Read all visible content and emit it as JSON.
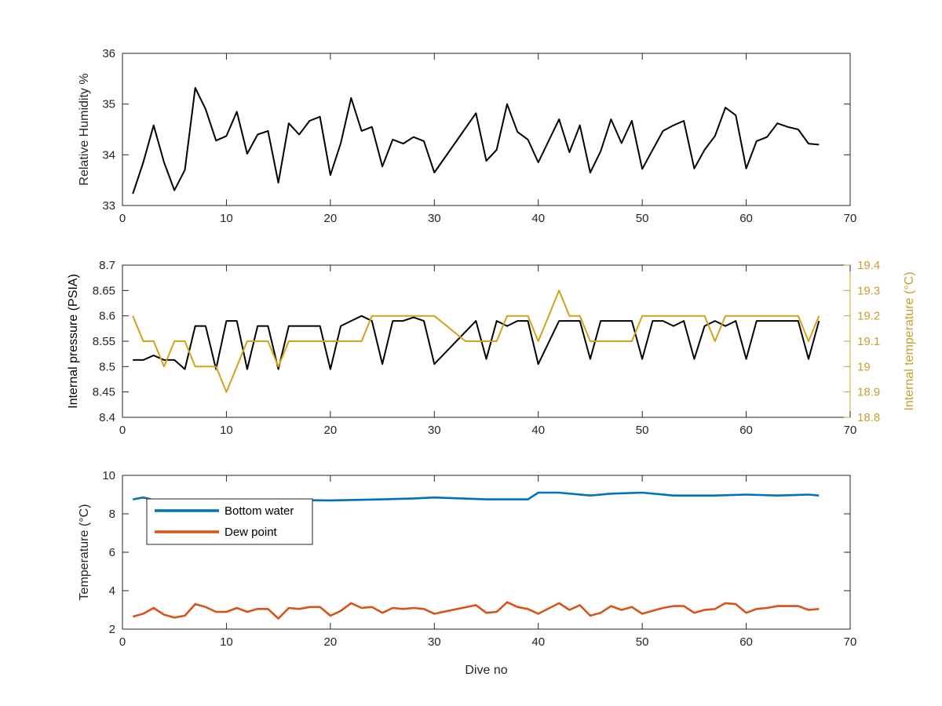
{
  "chart_data": [
    {
      "type": "line",
      "title": "",
      "xlabel": "",
      "ylabel": "Relative Humidity %",
      "xlim": [
        0,
        70
      ],
      "ylim": [
        33,
        36
      ],
      "xticks": [
        "0",
        "10",
        "20",
        "30",
        "40",
        "50",
        "60",
        "70"
      ],
      "yticks": [
        "33",
        "34",
        "35",
        "36"
      ],
      "grid": false,
      "series": [
        {
          "color": "#000000",
          "x": [
            1,
            2,
            3,
            4,
            5,
            6,
            7,
            8,
            9,
            10,
            11,
            12,
            13,
            14,
            15,
            16,
            17,
            18,
            19,
            20,
            21,
            22,
            23,
            24,
            25,
            26,
            27,
            28,
            29,
            30,
            34,
            35,
            36,
            37,
            38,
            39,
            40,
            42,
            43,
            44,
            45,
            46,
            47,
            48,
            49,
            50,
            52,
            53,
            54,
            55,
            56,
            57,
            58,
            59,
            60,
            61,
            62,
            63,
            64,
            65,
            66,
            67
          ],
          "values": [
            33.23,
            33.85,
            34.58,
            33.85,
            33.3,
            33.7,
            35.32,
            34.9,
            34.28,
            34.37,
            34.85,
            34.02,
            34.4,
            34.47,
            33.45,
            34.62,
            34.4,
            34.67,
            34.75,
            33.6,
            34.23,
            35.12,
            34.47,
            34.55,
            33.77,
            34.3,
            34.22,
            34.35,
            34.27,
            33.65,
            34.82,
            33.88,
            34.1,
            35.0,
            34.45,
            34.3,
            33.85,
            34.7,
            34.05,
            34.58,
            33.65,
            34.07,
            34.7,
            34.23,
            34.67,
            33.72,
            34.47,
            34.58,
            34.67,
            33.73,
            34.1,
            34.37,
            34.93,
            34.78,
            33.73,
            34.27,
            34.35,
            34.62,
            34.55,
            34.5,
            34.22,
            34.2
          ]
        }
      ]
    },
    {
      "type": "line",
      "title": "",
      "xlabel": "",
      "ylabel": "Internal pressure (PSIA)",
      "y2label": "Internal temperature (°C)",
      "xlim": [
        0,
        70
      ],
      "ylim": [
        8.4,
        8.7
      ],
      "y2lim": [
        18.8,
        19.4
      ],
      "xticks": [
        "0",
        "10",
        "20",
        "30",
        "40",
        "50",
        "60",
        "70"
      ],
      "yticks": [
        "8.4",
        "8.45",
        "8.5",
        "8.55",
        "8.6",
        "8.65",
        "8.7"
      ],
      "y2ticks": [
        "18.8",
        "18.9",
        "19",
        "19.1",
        "19.2",
        "19.3",
        "19.4"
      ],
      "grid": false,
      "series": [
        {
          "axis": "left",
          "color": "#000000",
          "x": [
            1,
            2,
            3,
            4,
            5,
            6,
            7,
            8,
            9,
            10,
            11,
            12,
            13,
            14,
            15,
            16,
            17,
            18,
            19,
            20,
            21,
            22,
            23,
            24,
            25,
            26,
            27,
            28,
            29,
            30,
            34,
            35,
            36,
            37,
            38,
            39,
            40,
            42,
            43,
            44,
            45,
            46,
            47,
            48,
            49,
            50,
            51,
            52,
            53,
            54,
            55,
            56,
            57,
            58,
            59,
            60,
            61,
            62,
            63,
            64,
            65,
            66,
            67
          ],
          "values": [
            8.513,
            8.513,
            8.522,
            8.513,
            8.513,
            8.495,
            8.58,
            8.58,
            8.495,
            8.59,
            8.59,
            8.495,
            8.58,
            8.58,
            8.495,
            8.58,
            8.58,
            8.58,
            8.58,
            8.495,
            8.58,
            8.59,
            8.6,
            8.59,
            8.505,
            8.59,
            8.59,
            8.597,
            8.59,
            8.505,
            8.59,
            8.515,
            8.59,
            8.58,
            8.59,
            8.59,
            8.505,
            8.59,
            8.59,
            8.59,
            8.515,
            8.59,
            8.59,
            8.59,
            8.59,
            8.515,
            8.59,
            8.59,
            8.58,
            8.59,
            8.515,
            8.58,
            8.59,
            8.58,
            8.59,
            8.515,
            8.59,
            8.59,
            8.59,
            8.59,
            8.59,
            8.515,
            8.59
          ]
        },
        {
          "axis": "right",
          "color": "#D4A017",
          "x": [
            1,
            2,
            3,
            4,
            5,
            6,
            7,
            8,
            9,
            10,
            11,
            12,
            13,
            14,
            15,
            16,
            17,
            18,
            19,
            20,
            21,
            22,
            23,
            24,
            25,
            26,
            27,
            28,
            29,
            30,
            33,
            34,
            35,
            36,
            37,
            38,
            39,
            40,
            41,
            42,
            43,
            44,
            45,
            46,
            47,
            48,
            49,
            50,
            51,
            52,
            53,
            54,
            55,
            56,
            57,
            58,
            59,
            60,
            61,
            62,
            63,
            64,
            65,
            66,
            67
          ],
          "values": [
            19.2,
            19.1,
            19.1,
            19.0,
            19.1,
            19.1,
            19.0,
            19.0,
            19.0,
            18.9,
            19.0,
            19.1,
            19.1,
            19.1,
            19.0,
            19.1,
            19.1,
            19.1,
            19.1,
            19.1,
            19.1,
            19.1,
            19.1,
            19.2,
            19.2,
            19.2,
            19.2,
            19.2,
            19.2,
            19.2,
            19.1,
            19.1,
            19.1,
            19.1,
            19.2,
            19.2,
            19.2,
            19.1,
            19.2,
            19.3,
            19.2,
            19.2,
            19.1,
            19.1,
            19.1,
            19.1,
            19.1,
            19.2,
            19.2,
            19.2,
            19.2,
            19.2,
            19.2,
            19.2,
            19.1,
            19.2,
            19.2,
            19.2,
            19.2,
            19.2,
            19.2,
            19.2,
            19.2,
            19.1,
            19.2
          ]
        }
      ]
    },
    {
      "type": "line",
      "title": "",
      "xlabel": "Dive no",
      "ylabel": "Temperature (°C)",
      "xlim": [
        0,
        70
      ],
      "ylim": [
        2,
        10
      ],
      "xticks": [
        "0",
        "10",
        "20",
        "30",
        "40",
        "50",
        "60",
        "70"
      ],
      "yticks": [
        "2",
        "4",
        "6",
        "8",
        "10"
      ],
      "grid": false,
      "legend": "top-left",
      "series": [
        {
          "name": "Bottom water",
          "color": "#0072BD",
          "x": [
            1,
            2,
            3,
            6,
            10,
            15,
            20,
            25,
            28,
            30,
            35,
            39,
            40,
            42,
            45,
            47,
            50,
            53,
            57,
            60,
            63,
            66,
            67
          ],
          "values": [
            8.75,
            8.85,
            8.72,
            8.7,
            8.72,
            8.72,
            8.7,
            8.75,
            8.8,
            8.85,
            8.75,
            8.75,
            9.1,
            9.1,
            8.95,
            9.05,
            9.1,
            8.95,
            8.95,
            9.0,
            8.95,
            9.0,
            8.95
          ]
        },
        {
          "name": "Dew point",
          "color": "#D95319",
          "x": [
            1,
            2,
            3,
            4,
            5,
            6,
            7,
            8,
            9,
            10,
            11,
            12,
            13,
            14,
            15,
            16,
            17,
            18,
            19,
            20,
            21,
            22,
            23,
            24,
            25,
            26,
            27,
            28,
            29,
            30,
            34,
            35,
            36,
            37,
            38,
            39,
            40,
            42,
            43,
            44,
            45,
            46,
            47,
            48,
            49,
            50,
            52,
            53,
            54,
            55,
            56,
            57,
            58,
            59,
            60,
            61,
            62,
            63,
            64,
            65,
            66,
            67
          ],
          "values": [
            2.65,
            2.8,
            3.1,
            2.75,
            2.6,
            2.7,
            3.3,
            3.15,
            2.9,
            2.9,
            3.1,
            2.9,
            3.05,
            3.05,
            2.55,
            3.1,
            3.05,
            3.15,
            3.15,
            2.7,
            2.95,
            3.35,
            3.1,
            3.15,
            2.85,
            3.1,
            3.05,
            3.1,
            3.05,
            2.8,
            3.25,
            2.85,
            2.9,
            3.4,
            3.15,
            3.05,
            2.8,
            3.35,
            3.0,
            3.25,
            2.7,
            2.85,
            3.2,
            3.0,
            3.15,
            2.8,
            3.1,
            3.2,
            3.2,
            2.85,
            3.0,
            3.05,
            3.35,
            3.3,
            2.85,
            3.05,
            3.1,
            3.2,
            3.2,
            3.2,
            3.0,
            3.05
          ]
        }
      ]
    }
  ]
}
